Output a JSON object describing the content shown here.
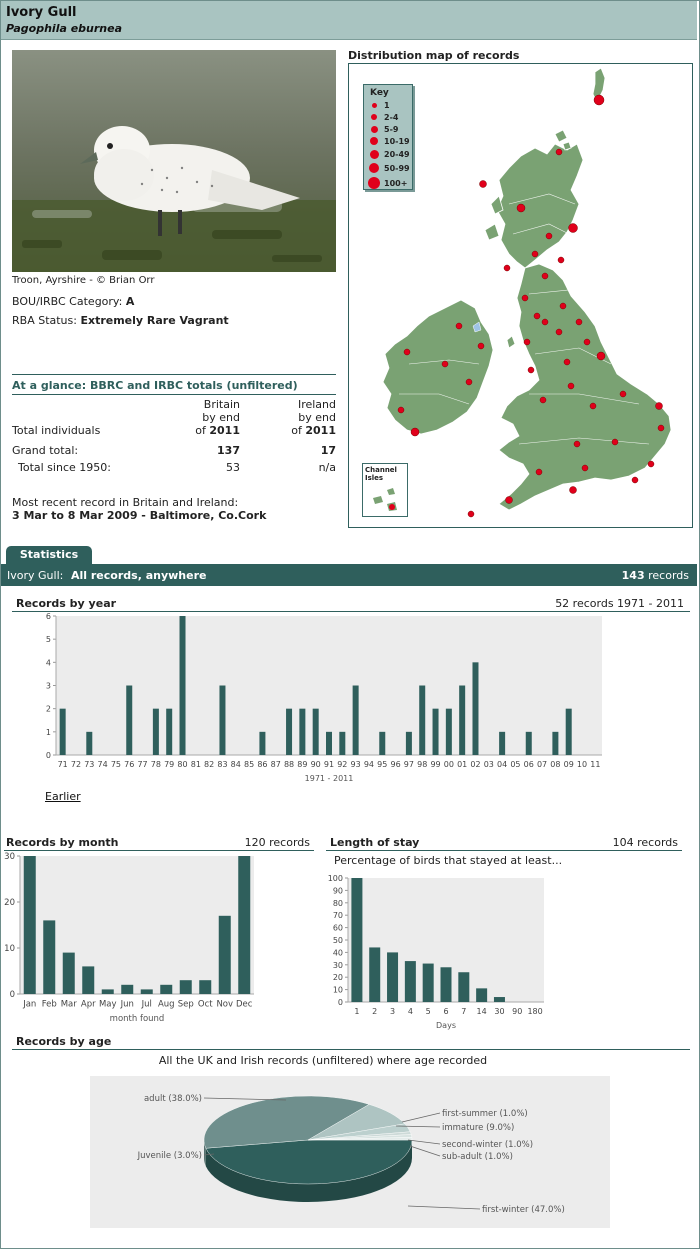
{
  "header": {
    "common_name": "Ivory Gull",
    "scientific_name": "Pagophila eburnea"
  },
  "photo": {
    "caption": "Troon, Ayrshire - © Brian Orr"
  },
  "status": {
    "category_label": "BOU/IRBC Category:",
    "category_value": "A",
    "rba_label": "RBA Status:",
    "rba_value": "Extremely Rare Vagrant"
  },
  "glance": {
    "title": "At a glance: BBRC and IRBC totals (unfiltered)",
    "britain_head": [
      "Britain",
      "by end",
      "of"
    ],
    "ireland_head": [
      "Ireland",
      "by end",
      "of"
    ],
    "year": "2011",
    "row1_label": "Total individuals",
    "grand_label": "Grand total:",
    "grand_britain": "137",
    "grand_ireland": "17",
    "since_label": "Total since 1950:",
    "since_britain": "53",
    "since_ireland": "n/a",
    "recent_label": "Most recent record in Britain and Ireland:",
    "recent_value": "3 Mar to 8 Mar 2009 - Baltimore, Co.Cork"
  },
  "map": {
    "title": "Distribution map of records",
    "key_title": "Key",
    "key_items": [
      "1",
      "2-4",
      "5-9",
      "10-19",
      "20-49",
      "50-99",
      "100+"
    ],
    "channel_label": "Channel Isles",
    "land_color": "#7aa273",
    "dot_color": "#e0001b"
  },
  "stats": {
    "tab_label": "Statistics",
    "bar_species": "Ivory Gull:",
    "bar_filter": "All records, anywhere",
    "bar_count": "143",
    "bar_count_suffix": "records"
  },
  "year_chart": {
    "title": "Records by year",
    "summary": "52 records 1971 - 2011",
    "xlabel": "1971 - 2011",
    "earlier_link": "Earlier"
  },
  "month_chart": {
    "title": "Records by month",
    "summary": "120 records",
    "xlabel": "month found"
  },
  "stay_chart": {
    "title": "Length of stay",
    "summary": "104 records",
    "subtitle": "Percentage of birds that stayed at least...",
    "xlabel": "Days"
  },
  "age_chart": {
    "title": "Records by age",
    "subtitle": "All the UK and Irish records (unfiltered) where age recorded"
  },
  "chart_data": [
    {
      "type": "bar",
      "title": "Records by year",
      "xlabel": "1971 - 2011",
      "ylim": [
        0,
        6
      ],
      "yticks": [
        0,
        1,
        2,
        3,
        4,
        5,
        6
      ],
      "categories": [
        "71",
        "72",
        "73",
        "74",
        "75",
        "76",
        "77",
        "78",
        "79",
        "80",
        "81",
        "82",
        "83",
        "84",
        "85",
        "86",
        "87",
        "88",
        "89",
        "90",
        "91",
        "92",
        "93",
        "94",
        "95",
        "96",
        "97",
        "98",
        "99",
        "00",
        "01",
        "02",
        "03",
        "04",
        "05",
        "06",
        "07",
        "08",
        "09",
        "10",
        "11"
      ],
      "values": [
        2,
        0,
        1,
        0,
        0,
        3,
        0,
        2,
        2,
        6,
        0,
        0,
        3,
        0,
        0,
        1,
        0,
        2,
        2,
        2,
        1,
        1,
        3,
        0,
        1,
        0,
        1,
        3,
        2,
        2,
        3,
        4,
        0,
        1,
        0,
        1,
        0,
        1,
        2,
        0,
        0
      ]
    },
    {
      "type": "bar",
      "title": "Records by month",
      "xlabel": "month found",
      "ylim": [
        0,
        30
      ],
      "yticks": [
        0,
        10,
        20,
        30
      ],
      "categories": [
        "Jan",
        "Feb",
        "Mar",
        "Apr",
        "May",
        "Jun",
        "Jul",
        "Aug",
        "Sep",
        "Oct",
        "Nov",
        "Dec"
      ],
      "values": [
        30,
        16,
        9,
        6,
        1,
        2,
        1,
        2,
        3,
        3,
        17,
        30
      ]
    },
    {
      "type": "bar",
      "title": "Length of stay",
      "xlabel": "Days",
      "ylim": [
        0,
        100
      ],
      "yticks": [
        0,
        10,
        20,
        30,
        40,
        50,
        60,
        70,
        80,
        90,
        100
      ],
      "categories": [
        "1",
        "2",
        "3",
        "4",
        "5",
        "6",
        "7",
        "14",
        "30",
        "90",
        "180"
      ],
      "values": [
        100,
        44,
        40,
        33,
        31,
        28,
        24,
        11,
        4,
        0,
        0
      ]
    },
    {
      "type": "pie",
      "title": "Records by age",
      "categories": [
        "first-winter (47.0%)",
        "adult (38.0%)",
        "immature (9.0%)",
        "Juvenile (3.0%)",
        "first-summer (1.0%)",
        "second-winter (1.0%)",
        "sub-adult (1.0%)"
      ],
      "values": [
        47,
        38,
        9,
        3,
        1,
        1,
        1
      ]
    }
  ]
}
